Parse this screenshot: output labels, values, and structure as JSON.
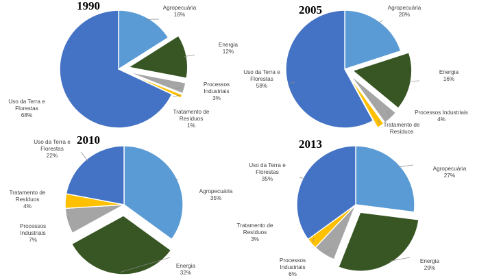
{
  "colors": {
    "Agropecuária": "#5b9bd5",
    "Energia": "#375623",
    "Processos Industriais": "#a5a5a5",
    "Tratamento de Resíduos": "#ffc000",
    "Uso da Terra e Florestas": "#4472c4"
  },
  "chart_data": [
    {
      "type": "pie",
      "title": "1990",
      "slices": [
        {
          "name": "Agropecuária",
          "label_lines": [
            "Agropecuária"
          ],
          "value": 16,
          "value_label": "16%",
          "exploded": false
        },
        {
          "name": "Energia",
          "label_lines": [
            "Energia"
          ],
          "value": 12,
          "value_label": "12%",
          "exploded": true
        },
        {
          "name": "Processos Industriais",
          "label_lines": [
            "Processos",
            "Industriais"
          ],
          "value": 3,
          "value_label": "3%",
          "exploded": true
        },
        {
          "name": "Tratamento de Resíduos",
          "label_lines": [
            "Tratamento de",
            "Resíduos"
          ],
          "value": 1,
          "value_label": "1%",
          "exploded": true
        },
        {
          "name": "Uso da Terra e Florestas",
          "label_lines": [
            "Uso da Terra e",
            "Florestas"
          ],
          "value": 68,
          "value_label": "68%",
          "exploded": false
        }
      ]
    },
    {
      "type": "pie",
      "title": "2005",
      "slices": [
        {
          "name": "Agropecuária",
          "label_lines": [
            "Agropecuária"
          ],
          "value": 20,
          "value_label": "20%",
          "exploded": false
        },
        {
          "name": "Energia",
          "label_lines": [
            "Energia"
          ],
          "value": 16,
          "value_label": "16%",
          "exploded": true
        },
        {
          "name": "Processos Industriais",
          "label_lines": [
            "Processos Industriais"
          ],
          "value": 4,
          "value_label": "4%",
          "exploded": true
        },
        {
          "name": "Tratamento de Resíduos",
          "label_lines": [
            "Tratamento de",
            "Resíduos"
          ],
          "value": 2,
          "value_label": "",
          "exploded": true
        },
        {
          "name": "Uso da Terra e Florestas",
          "label_lines": [
            "Uso da Terra e",
            "Florestas"
          ],
          "value": 58,
          "value_label": "58%",
          "exploded": false
        }
      ]
    },
    {
      "type": "pie",
      "title": "2010",
      "slices": [
        {
          "name": "Agropecuária",
          "label_lines": [
            "Agropecuária"
          ],
          "value": 35,
          "value_label": "35%",
          "exploded": false
        },
        {
          "name": "Energia",
          "label_lines": [
            "Energia"
          ],
          "value": 32,
          "value_label": "32%",
          "exploded": true
        },
        {
          "name": "Processos Industriais",
          "label_lines": [
            "Processos",
            "Industriais"
          ],
          "value": 7,
          "value_label": "7%",
          "exploded": false
        },
        {
          "name": "Tratamento de Resíduos",
          "label_lines": [
            "Tratamento de",
            "Resíduos"
          ],
          "value": 4,
          "value_label": "4%",
          "exploded": false
        },
        {
          "name": "Uso da Terra e Florestas",
          "label_lines": [
            "Uso da Terra e",
            "Florestas"
          ],
          "value": 22,
          "value_label": "22%",
          "exploded": false
        }
      ]
    },
    {
      "type": "pie",
      "title": "2013",
      "slices": [
        {
          "name": "Agropecuária",
          "label_lines": [
            "Agropecuária"
          ],
          "value": 27,
          "value_label": "27%",
          "exploded": false
        },
        {
          "name": "Energia",
          "label_lines": [
            "Energia"
          ],
          "value": 29,
          "value_label": "29%",
          "exploded": true
        },
        {
          "name": "Processos Industriais",
          "label_lines": [
            "Processos",
            "Industriais"
          ],
          "value": 6,
          "value_label": "6%",
          "exploded": false
        },
        {
          "name": "Tratamento de Resíduos",
          "label_lines": [
            "Tratamento de",
            "Resíduos"
          ],
          "value": 3,
          "value_label": "3%",
          "exploded": false
        },
        {
          "name": "Uso da Terra e Florestas",
          "label_lines": [
            "Uso da Terra e",
            "Florestas"
          ],
          "value": 35,
          "value_label": "35%",
          "exploded": false
        }
      ]
    }
  ]
}
